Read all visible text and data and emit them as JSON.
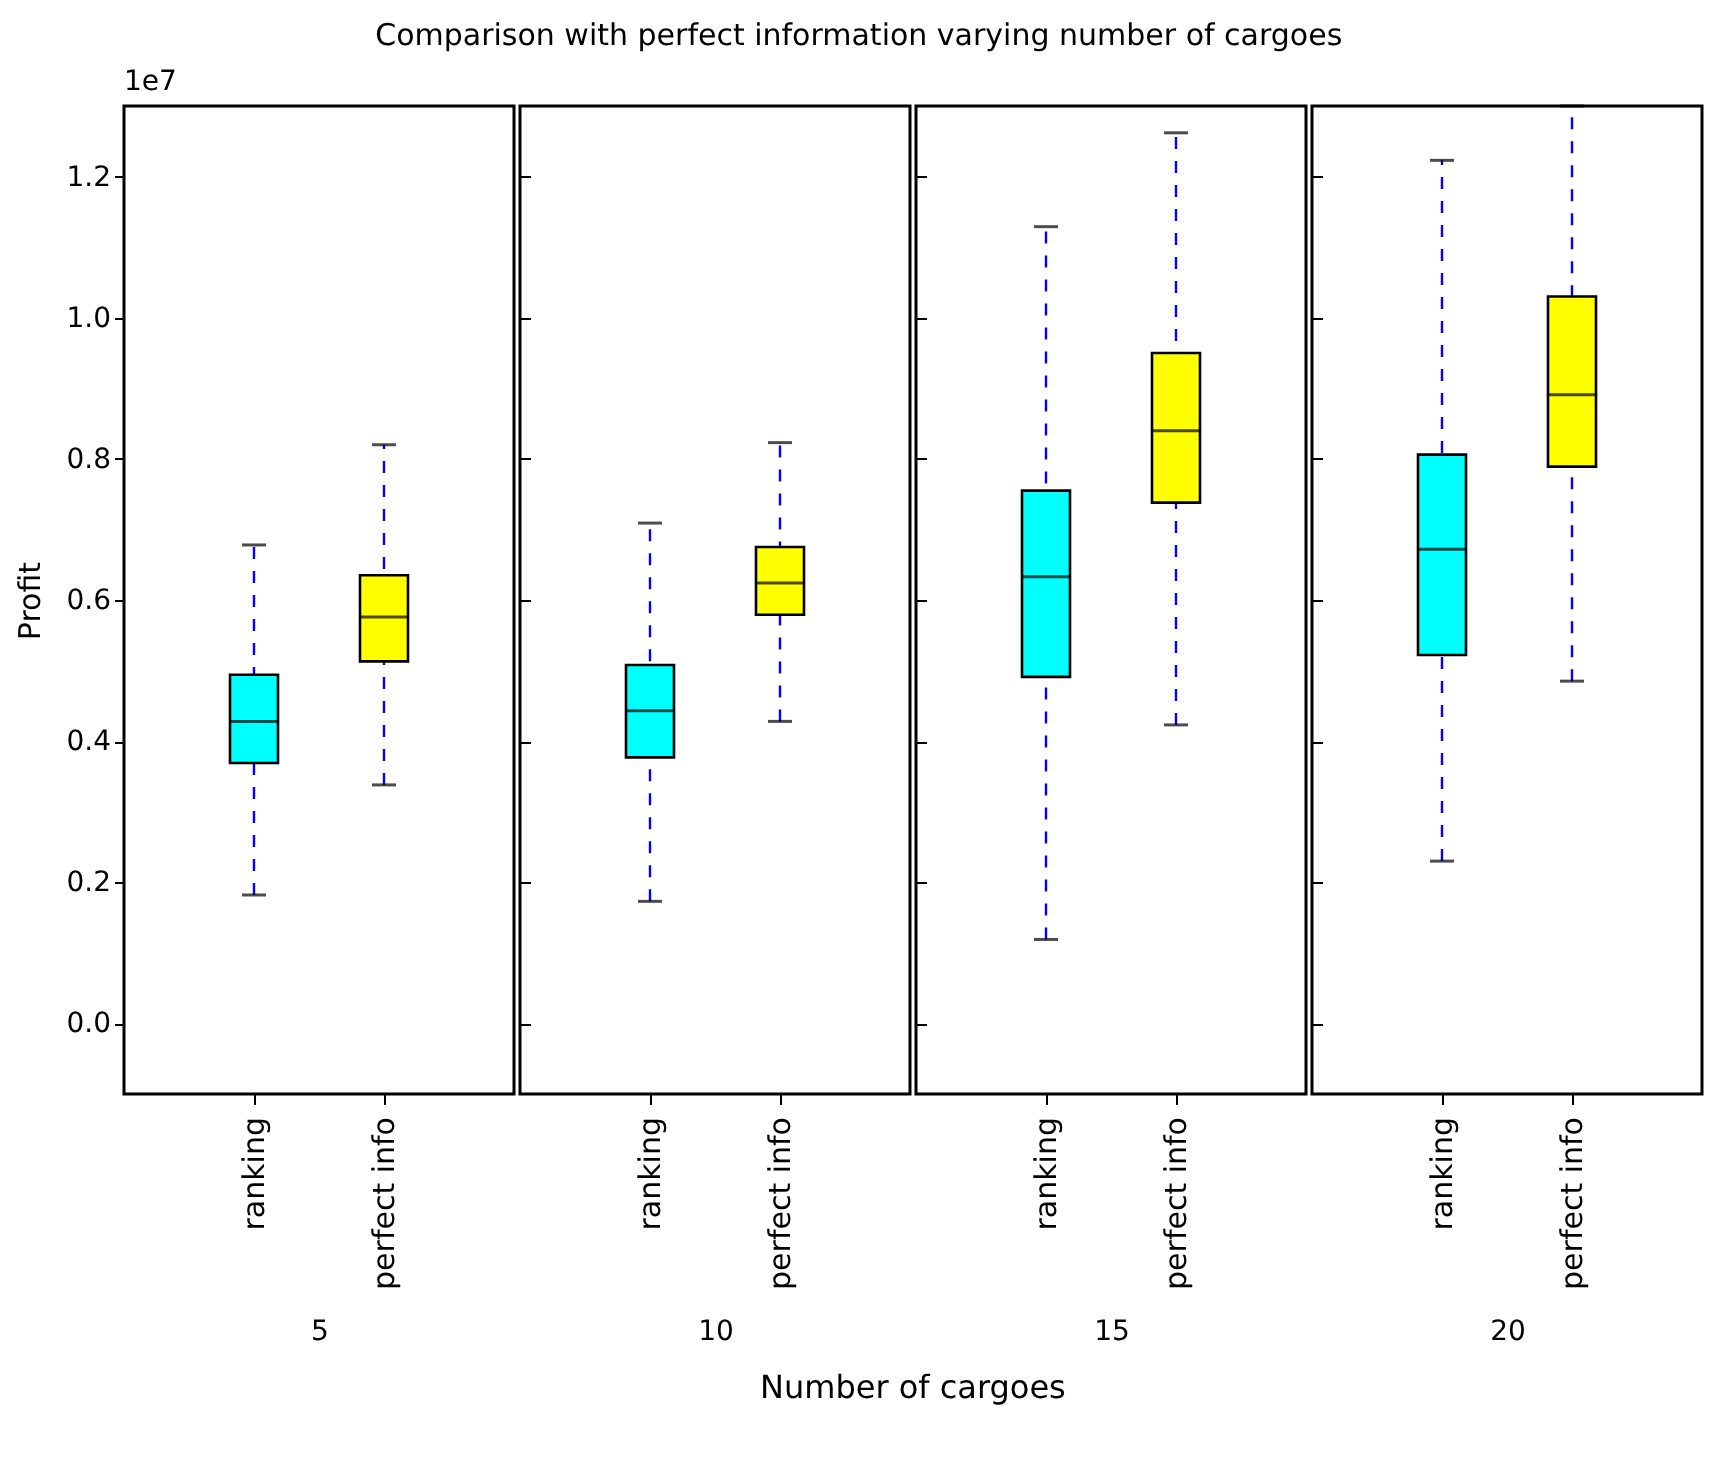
{
  "chart_data": [
    {
      "type": "box",
      "title": "Comparison with perfect information varying number of cargoes",
      "xlabel": "5",
      "ylabel": "Profit",
      "annotations": [
        "1e7",
        "Number of cargoes"
      ],
      "categories": [
        "ranking",
        "perfect info"
      ],
      "colors": [
        "#00ffff",
        "#ffff00"
      ],
      "boxes": [
        {
          "low": 0.182,
          "q1": 0.369,
          "median": 0.428,
          "q3": 0.494,
          "high": 0.678
        },
        {
          "low": 0.338,
          "q1": 0.513,
          "median": 0.576,
          "q3": 0.635,
          "high": 0.82
        }
      ],
      "ylim": [
        -0.1,
        1.3
      ],
      "yticks": [
        {
          "value": 0,
          "label": "0.0"
        },
        0.2,
        0.4,
        0.6,
        0.8,
        {
          "value": 1,
          "label": "1.0"
        },
        1.2
      ]
    },
    {
      "type": "box",
      "xlabel": "10",
      "categories": [
        "ranking",
        "perfect info"
      ],
      "colors": [
        "#00ffff",
        "#ffff00"
      ],
      "tick_labels": "x",
      "boxes": [
        {
          "low": 0.173,
          "q1": 0.377,
          "median": 0.443,
          "q3": 0.508,
          "high": 0.709
        },
        {
          "low": 0.428,
          "q1": 0.579,
          "median": 0.624,
          "q3": 0.675,
          "high": 0.823
        }
      ],
      "ylim": [
        -0.1,
        1.3
      ],
      "yticks": [
        0,
        0.2,
        0.4,
        0.6,
        0.8,
        1,
        1.2
      ]
    },
    {
      "type": "box",
      "xlabel": "15",
      "categories": [
        "ranking",
        "perfect info"
      ],
      "colors": [
        "#00ffff",
        "#ffff00"
      ],
      "tick_labels": "x",
      "boxes": [
        {
          "low": 0.119,
          "q1": 0.491,
          "median": 0.633,
          "q3": 0.755,
          "high": 1.129
        },
        {
          "low": 0.423,
          "q1": 0.738,
          "median": 0.84,
          "q3": 0.95,
          "high": 1.262
        }
      ],
      "ylim": [
        -0.1,
        1.3
      ],
      "yticks": [
        0,
        0.2,
        0.4,
        0.6,
        0.8,
        1,
        1.2
      ]
    },
    {
      "type": "box",
      "xlabel": "20",
      "categories": [
        "ranking",
        "perfect info"
      ],
      "colors": [
        "#00ffff",
        "#ffff00"
      ],
      "tick_labels": "x",
      "boxes": [
        {
          "low": 0.23,
          "q1": 0.522,
          "median": 0.672,
          "q3": 0.806,
          "high": 1.223
        },
        {
          "low": 0.485,
          "q1": 0.789,
          "median": 0.891,
          "q3": 1.03,
          "high": 1.3
        }
      ],
      "ylim": [
        -0.1,
        1.3
      ],
      "yticks": [
        0,
        0.2,
        0.4,
        0.6,
        0.8,
        1,
        1.2
      ]
    }
  ]
}
